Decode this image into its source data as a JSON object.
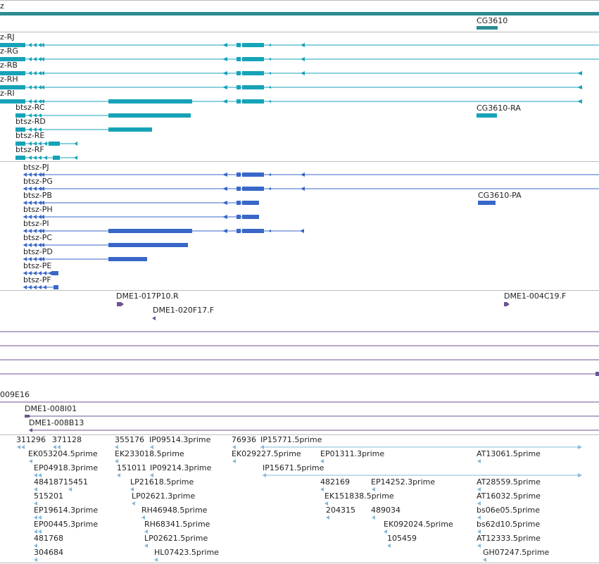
{
  "colors": {
    "gene": "#2b8c93",
    "transcript_rna": "#16a3b8",
    "protein": "#3867c8",
    "clone": "#6e5393",
    "est": "#86b9d9",
    "separator": "#bdbdbd"
  },
  "gene_track": {
    "gene_main_label": "z",
    "gene_other_label": "CG3610"
  },
  "transcripts": {
    "rna": [
      "z-RJ",
      "z-RG",
      "z-RB",
      "z-RH",
      "z-RI",
      "btsz-RC",
      "btsz-RD",
      "btsz-RE",
      "btsz-RF"
    ],
    "cg3610_rna": "CG3610-RA",
    "protein": [
      "btsz-PJ",
      "btsz-PG",
      "btsz-PB",
      "btsz-PH",
      "btsz-PI",
      "btsz-PC",
      "btsz-PD",
      "btsz-PE",
      "btsz-PF"
    ],
    "cg3610_protein": "CG3610-PA"
  },
  "clones": {
    "a": "DME1-017P10.R",
    "b": "DME1-020F17.F",
    "c": "DME1-004C19.F",
    "d": "009E16",
    "e": "DME1-008I01",
    "f": "DME1-008B13"
  },
  "ests": [
    "311296",
    "371128",
    "355176",
    "IP09514.3prime",
    "76936",
    "IP15771.5prime",
    "EK053204.5prime",
    "EK233018.5prime",
    "EK029227.5prime",
    "EP01311.3prime",
    "AT13061.5prime",
    "EP04918.3prime",
    "151011",
    "IP09214.3prime",
    "IP15671.5prime",
    "48418715451",
    "LP21618.5prime",
    "482169",
    "EP14252.3prime",
    "AT28559.5prime",
    "515201",
    "LP02621.3prime",
    "EK151838.5prime",
    "AT16032.5prime",
    "EP19614.3prime",
    "RH46948.5prime",
    "204315",
    "489034",
    "bs06e05.5prime",
    "EP00445.3prime",
    "RH68341.5prime",
    "EK092024.5prime",
    "bs62d10.5prime",
    "481768",
    "LP02621.5prime",
    "105459",
    "AT12333.5prime",
    "304684",
    "HL07423.5prime",
    "GH07247.5prime"
  ]
}
